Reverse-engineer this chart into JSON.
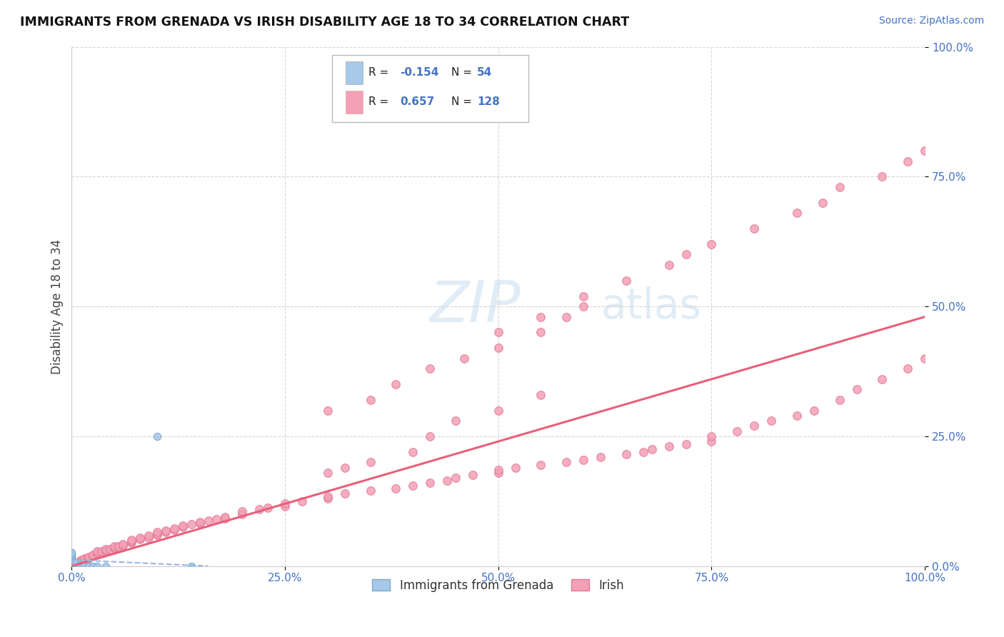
{
  "title": "IMMIGRANTS FROM GRENADA VS IRISH DISABILITY AGE 18 TO 34 CORRELATION CHART",
  "source": "Source: ZipAtlas.com",
  "ylabel": "Disability Age 18 to 34",
  "watermark": "ZIPatlas",
  "legend_label1": "Immigrants from Grenada",
  "legend_label2": "Irish",
  "color_blue": "#a8c8e8",
  "color_pink": "#f4a0b5",
  "color_blue_edge": "#7aaace",
  "color_pink_edge": "#e07898",
  "trendline_blue_color": "#99b8d8",
  "trendline_pink_color": "#e8607a",
  "tick_color": "#4472c4",
  "background_color": "#ffffff",
  "grid_color": "#cccccc",
  "r1": "-0.154",
  "n1": "54",
  "r2": "0.657",
  "n2": "128",
  "blue_x": [
    0.0,
    0.0,
    0.0,
    0.0,
    0.0,
    0.0,
    0.0,
    0.0,
    0.0,
    0.0,
    0.0,
    0.0,
    0.0,
    0.0,
    0.0,
    0.0,
    0.0,
    0.0,
    0.0,
    0.0,
    0.0,
    0.0,
    0.0,
    0.0,
    0.0,
    0.0,
    0.0,
    0.0,
    0.0,
    0.0,
    0.0,
    0.0,
    0.0,
    0.0,
    0.0,
    0.0,
    0.0,
    0.0,
    0.0,
    0.003,
    0.003,
    0.005,
    0.005,
    0.007,
    0.008,
    0.01,
    0.012,
    0.015,
    0.02,
    0.025,
    0.03,
    0.04,
    0.1,
    0.14
  ],
  "blue_y": [
    0.0,
    0.0,
    0.0,
    0.0,
    0.0,
    0.0,
    0.0,
    0.0,
    0.0,
    0.0,
    0.0,
    0.0,
    0.0,
    0.0,
    0.0,
    0.0,
    0.0,
    0.0,
    0.0,
    0.0,
    0.0,
    0.0,
    0.003,
    0.005,
    0.005,
    0.007,
    0.008,
    0.01,
    0.01,
    0.01,
    0.012,
    0.015,
    0.015,
    0.018,
    0.02,
    0.02,
    0.022,
    0.025,
    0.025,
    0.0,
    0.008,
    0.0,
    0.005,
    0.0,
    0.0,
    0.0,
    0.0,
    0.0,
    0.0,
    0.0,
    0.0,
    0.0,
    0.25,
    0.0
  ],
  "pink_x": [
    0.0,
    0.0,
    0.0,
    0.0,
    0.0,
    0.0,
    0.0,
    0.0,
    0.003,
    0.005,
    0.005,
    0.007,
    0.008,
    0.01,
    0.01,
    0.01,
    0.012,
    0.012,
    0.015,
    0.015,
    0.018,
    0.02,
    0.02,
    0.025,
    0.025,
    0.03,
    0.03,
    0.03,
    0.035,
    0.04,
    0.04,
    0.04,
    0.045,
    0.05,
    0.05,
    0.05,
    0.055,
    0.06,
    0.06,
    0.07,
    0.07,
    0.07,
    0.08,
    0.08,
    0.09,
    0.09,
    0.1,
    0.1,
    0.1,
    0.11,
    0.11,
    0.12,
    0.12,
    0.13,
    0.13,
    0.14,
    0.15,
    0.15,
    0.16,
    0.17,
    0.18,
    0.18,
    0.2,
    0.2,
    0.22,
    0.23,
    0.25,
    0.25,
    0.27,
    0.3,
    0.3,
    0.32,
    0.35,
    0.38,
    0.4,
    0.42,
    0.44,
    0.45,
    0.47,
    0.5,
    0.5,
    0.52,
    0.55,
    0.58,
    0.6,
    0.62,
    0.65,
    0.67,
    0.68,
    0.7,
    0.72,
    0.75,
    0.75,
    0.78,
    0.8,
    0.82,
    0.85,
    0.87,
    0.9,
    0.92,
    0.95,
    0.98,
    1.0,
    0.5,
    0.55,
    0.6,
    0.6,
    0.65,
    0.7,
    0.72,
    0.75,
    0.8,
    0.85,
    0.88,
    0.9,
    0.95,
    0.98,
    1.0,
    0.3,
    0.35,
    0.38,
    0.42,
    0.46,
    0.5,
    0.55,
    0.58,
    0.3,
    0.32,
    0.35,
    0.4,
    0.42,
    0.45,
    0.5,
    0.55
  ],
  "pink_y": [
    0.0,
    0.0,
    0.0,
    0.0,
    0.0,
    0.0,
    0.0,
    0.0,
    0.0,
    0.0,
    0.0,
    0.0,
    0.0,
    0.005,
    0.008,
    0.01,
    0.01,
    0.012,
    0.012,
    0.015,
    0.015,
    0.015,
    0.018,
    0.02,
    0.022,
    0.025,
    0.025,
    0.028,
    0.028,
    0.03,
    0.03,
    0.032,
    0.032,
    0.035,
    0.035,
    0.038,
    0.038,
    0.04,
    0.042,
    0.045,
    0.048,
    0.05,
    0.052,
    0.055,
    0.055,
    0.058,
    0.06,
    0.062,
    0.065,
    0.065,
    0.068,
    0.07,
    0.072,
    0.075,
    0.078,
    0.08,
    0.082,
    0.085,
    0.088,
    0.09,
    0.092,
    0.095,
    0.1,
    0.105,
    0.11,
    0.112,
    0.115,
    0.12,
    0.125,
    0.13,
    0.135,
    0.14,
    0.145,
    0.15,
    0.155,
    0.16,
    0.165,
    0.17,
    0.175,
    0.18,
    0.185,
    0.19,
    0.195,
    0.2,
    0.205,
    0.21,
    0.215,
    0.22,
    0.225,
    0.23,
    0.235,
    0.24,
    0.25,
    0.26,
    0.27,
    0.28,
    0.29,
    0.3,
    0.32,
    0.34,
    0.36,
    0.38,
    0.4,
    0.45,
    0.48,
    0.5,
    0.52,
    0.55,
    0.58,
    0.6,
    0.62,
    0.65,
    0.68,
    0.7,
    0.73,
    0.75,
    0.78,
    0.8,
    0.3,
    0.32,
    0.35,
    0.38,
    0.4,
    0.42,
    0.45,
    0.48,
    0.18,
    0.19,
    0.2,
    0.22,
    0.25,
    0.28,
    0.3,
    0.33
  ],
  "pink_trendline_x0": 0.0,
  "pink_trendline_x1": 1.0,
  "pink_trendline_y0": 0.0,
  "pink_trendline_y1": 0.48,
  "blue_trendline_x0": 0.0,
  "blue_trendline_x1": 0.16,
  "blue_trendline_y0": 0.012,
  "blue_trendline_y1": 0.0,
  "xlim": [
    0.0,
    1.0
  ],
  "ylim": [
    0.0,
    1.0
  ],
  "xticks": [
    0.0,
    0.25,
    0.5,
    0.75,
    1.0
  ],
  "xtick_labels": [
    "0.0%",
    "25.0%",
    "50.0%",
    "75.0%",
    "100.0%"
  ],
  "yticks": [
    0.0,
    0.25,
    0.5,
    0.75,
    1.0
  ],
  "ytick_labels": [
    "0.0%",
    "25.0%",
    "50.0%",
    "75.0%",
    "100.0%"
  ]
}
